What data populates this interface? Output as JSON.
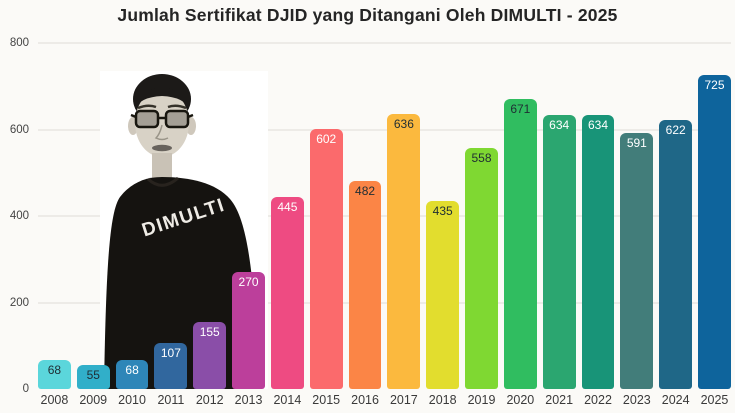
{
  "chart_data": {
    "type": "bar",
    "title": "Jumlah Sertifikat DJID yang Ditangani Oleh DIMULTI - 2025",
    "xlabel": "",
    "ylabel": "",
    "categories": [
      "2008",
      "2009",
      "2010",
      "2011",
      "2012",
      "2013",
      "2014",
      "2015",
      "2016",
      "2017",
      "2018",
      "2019",
      "2020",
      "2021",
      "2022",
      "2023",
      "2024",
      "2025"
    ],
    "values": [
      68,
      55,
      68,
      107,
      155,
      270,
      445,
      602,
      482,
      636,
      435,
      558,
      671,
      634,
      634,
      591,
      622,
      725
    ],
    "bar_colors": [
      "#5BD6DB",
      "#31AFC9",
      "#2E86B8",
      "#31679E",
      "#8A4EA8",
      "#BC3F9B",
      "#EE4B82",
      "#FB6A6C",
      "#FB8546",
      "#FBB93E",
      "#E2DD2E",
      "#7FD832",
      "#30BD60",
      "#2BA670",
      "#189478",
      "#427D7A",
      "#1F6787",
      "#0E649C"
    ],
    "value_label_is_dark": [
      true,
      true,
      false,
      false,
      false,
      false,
      false,
      false,
      true,
      true,
      true,
      true,
      true,
      false,
      false,
      false,
      false,
      false
    ],
    "ylim": [
      0,
      800
    ],
    "yticks": [
      0,
      200,
      400,
      600,
      800
    ],
    "grid": true,
    "legend": false
  },
  "overlay": {
    "shirt_text": "DIMULTI"
  },
  "colors": {
    "background": "#FBFAF7",
    "gridline": "#EDEBE7",
    "title_text": "#252525",
    "axis_text": "#444444",
    "value_label_dark": "#1F2D33",
    "value_label_light": "#FFFFFF"
  }
}
